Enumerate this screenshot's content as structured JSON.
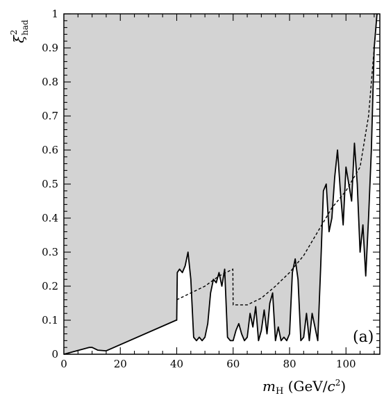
{
  "chart_data": {
    "type": "area",
    "panel_label": "(a)",
    "xlabel": "m_H (GeV/c²)",
    "ylabel": "ξ²_had",
    "xlim": [
      0,
      112
    ],
    "ylim": [
      0,
      1
    ],
    "x_ticks": [
      "0",
      "20",
      "40",
      "60",
      "80",
      "100"
    ],
    "y_ticks": [
      "0",
      "0.1",
      "0.2",
      "0.3",
      "0.4",
      "0.5",
      "0.6",
      "0.7",
      "0.8",
      "0.9",
      "1"
    ],
    "grid": false,
    "legend": "none",
    "colors": {
      "excluded_fill": "#d3d3d3",
      "line": "#000000",
      "background": "#ffffff"
    },
    "series": [
      {
        "style": "solid",
        "role": "observed",
        "x": [
          0,
          9,
          10,
          12,
          15,
          39.8,
          40,
          40.2,
          41,
          42,
          43,
          44,
          45,
          46,
          47,
          48,
          49,
          50,
          51,
          52,
          53,
          54,
          55,
          56,
          57,
          58,
          59,
          60,
          61,
          62,
          63,
          64,
          65,
          66,
          67,
          68,
          69,
          70,
          71,
          72,
          73,
          74,
          75,
          76,
          77,
          78,
          79,
          80,
          81,
          82,
          83,
          84,
          85,
          86,
          87,
          88,
          89,
          90,
          91,
          92,
          93,
          94,
          95,
          96,
          97,
          98,
          99,
          100,
          101,
          102,
          103,
          104,
          105,
          106,
          107,
          108,
          109,
          110,
          111
        ],
        "y": [
          0,
          0.02,
          0.02,
          0.012,
          0.01,
          0.1,
          0.1,
          0.24,
          0.25,
          0.24,
          0.26,
          0.3,
          0.22,
          0.05,
          0.04,
          0.05,
          0.04,
          0.05,
          0.09,
          0.18,
          0.22,
          0.21,
          0.24,
          0.2,
          0.25,
          0.05,
          0.04,
          0.04,
          0.07,
          0.09,
          0.06,
          0.04,
          0.05,
          0.12,
          0.08,
          0.14,
          0.04,
          0.07,
          0.13,
          0.06,
          0.15,
          0.18,
          0.04,
          0.08,
          0.04,
          0.05,
          0.04,
          0.06,
          0.24,
          0.28,
          0.22,
          0.04,
          0.05,
          0.12,
          0.04,
          0.12,
          0.08,
          0.04,
          0.25,
          0.48,
          0.5,
          0.36,
          0.4,
          0.52,
          0.6,
          0.48,
          0.38,
          0.55,
          0.5,
          0.45,
          0.62,
          0.5,
          0.3,
          0.38,
          0.23,
          0.4,
          0.6,
          0.9,
          1.0
        ]
      },
      {
        "style": "dashed",
        "role": "expected",
        "x": [
          40,
          45,
          50,
          55,
          59.9,
          60,
          65,
          70,
          75,
          80,
          85,
          90,
          95,
          100,
          105,
          108,
          110,
          111
        ],
        "y": [
          0.16,
          0.18,
          0.2,
          0.23,
          0.25,
          0.145,
          0.145,
          0.165,
          0.2,
          0.24,
          0.29,
          0.36,
          0.43,
          0.48,
          0.55,
          0.7,
          0.9,
          1.0
        ]
      }
    ]
  }
}
